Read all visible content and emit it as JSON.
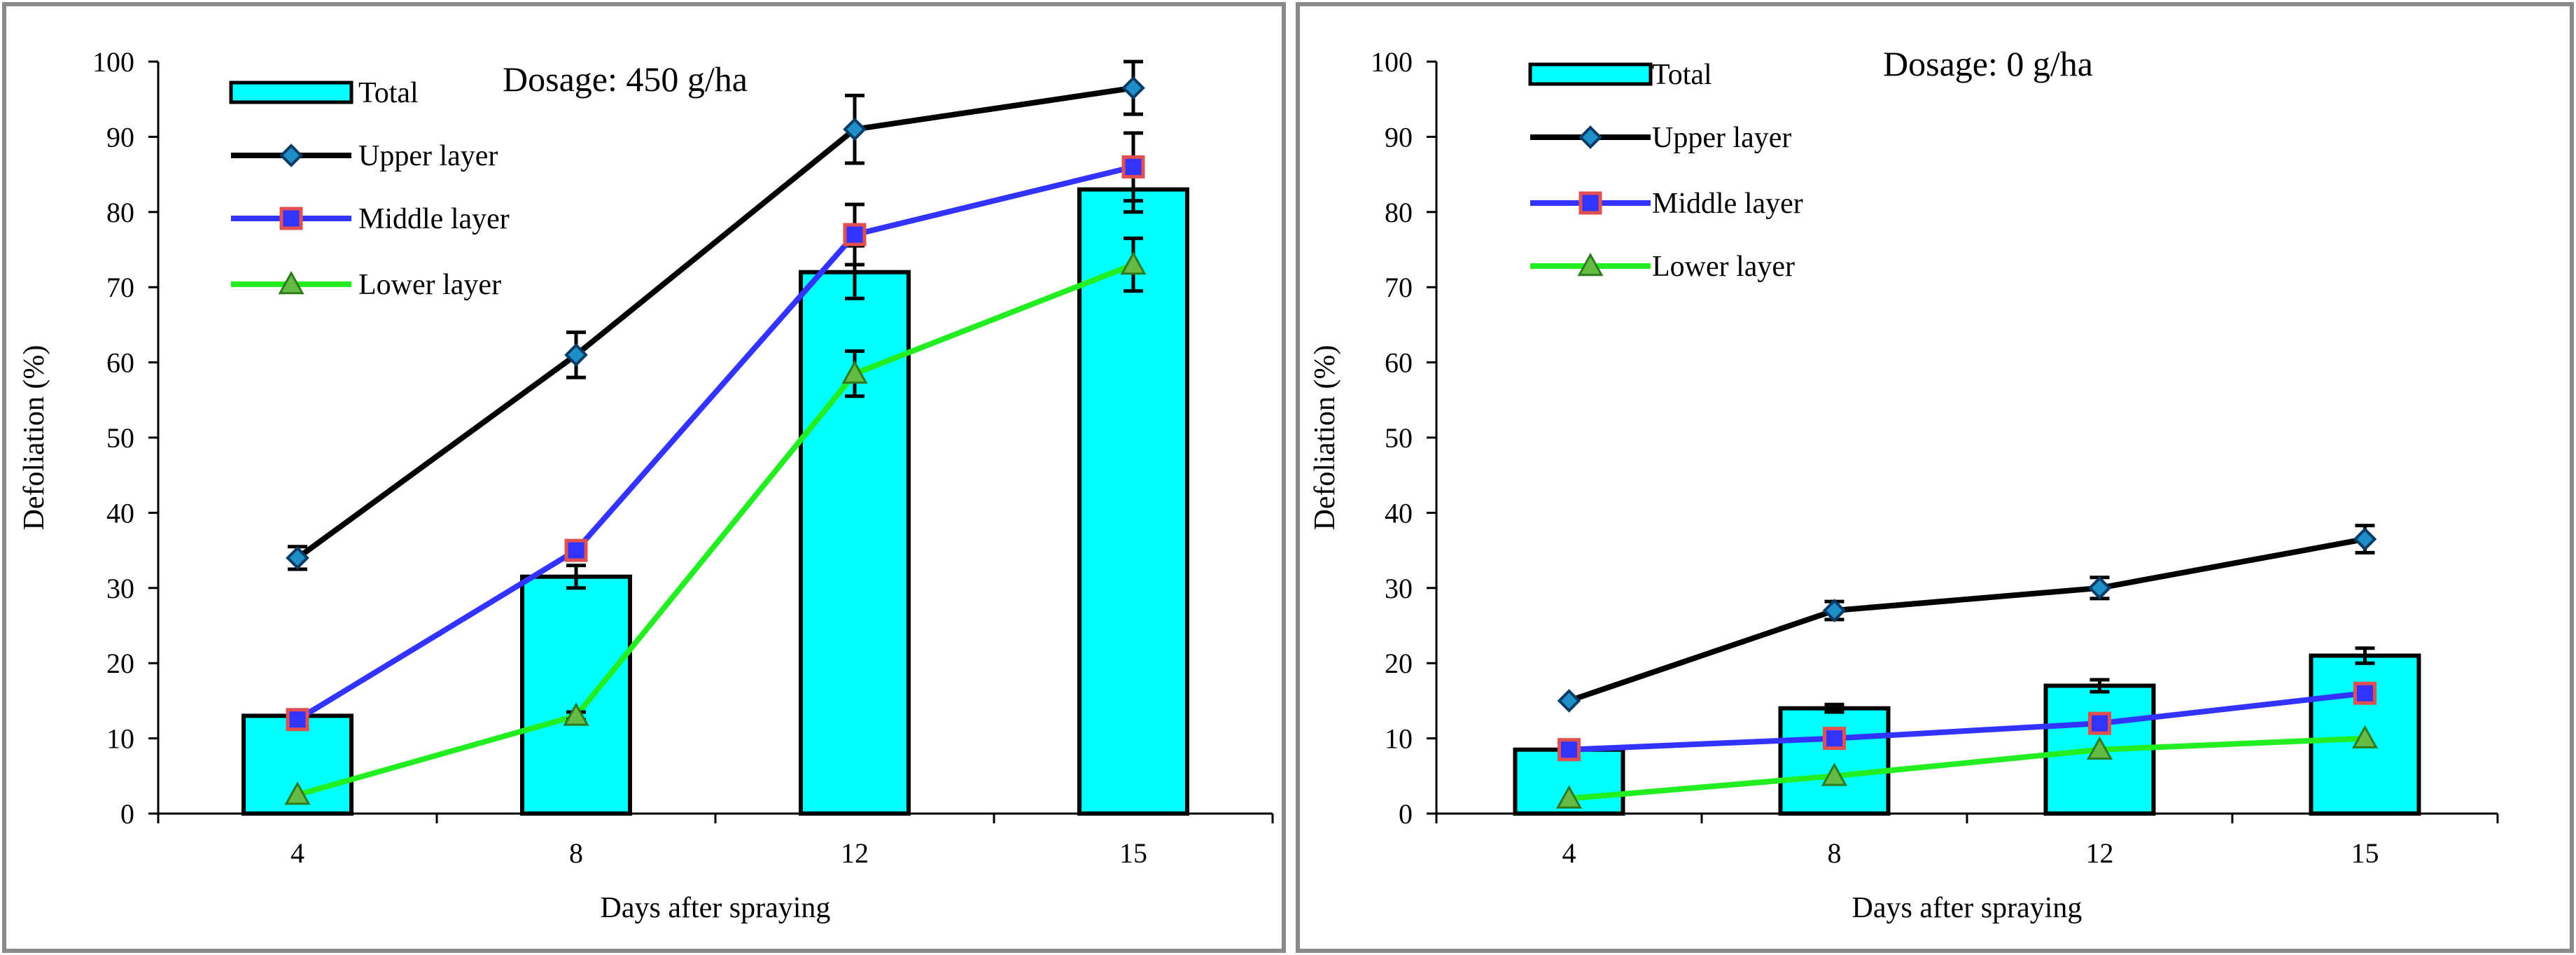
{
  "colors": {
    "total": "#00FFFF",
    "upper": "#000000",
    "upper_marker": "#1E8FC8",
    "middle": "#3333FF",
    "middle_marker_edge": "#E05050",
    "lower": "#22EE22",
    "lower_marker": "#66BB44",
    "frame": "#8A8A8A"
  },
  "chart_data": [
    {
      "type": "bar",
      "title": "Dosage: 450 g/ha",
      "xlabel": "Days after spraying",
      "ylabel": "Defoliation (%)",
      "ylim": [
        0,
        100
      ],
      "yticks": [
        0,
        10,
        20,
        30,
        40,
        50,
        60,
        70,
        80,
        90,
        100
      ],
      "categories": [
        "4",
        "8",
        "12",
        "15"
      ],
      "legend": [
        "Total",
        "Upper layer",
        "Middle layer",
        "Lower layer"
      ],
      "series": [
        {
          "name": "Total",
          "type": "bar",
          "values": [
            13,
            31.5,
            72,
            83
          ],
          "errors": [
            0,
            1.5,
            3.5,
            3
          ]
        },
        {
          "name": "Upper layer",
          "type": "line",
          "marker": "diamond",
          "values": [
            34,
            61,
            91,
            96.5
          ],
          "errors": [
            1.5,
            3,
            4.5,
            3.5
          ]
        },
        {
          "name": "Middle layer",
          "type": "line",
          "marker": "square",
          "values": [
            12.5,
            35,
            77,
            86
          ],
          "errors": [
            0,
            0,
            4,
            4.5
          ]
        },
        {
          "name": "Lower layer",
          "type": "line",
          "marker": "triangle",
          "values": [
            2.5,
            13,
            58.5,
            73
          ],
          "errors": [
            0,
            0.5,
            3,
            3.5
          ]
        }
      ]
    },
    {
      "type": "bar",
      "title": "Dosage: 0 g/ha",
      "xlabel": "Days after spraying",
      "ylabel": "Defoliation (%)",
      "ylim": [
        0,
        100
      ],
      "yticks": [
        0,
        10,
        20,
        30,
        40,
        50,
        60,
        70,
        80,
        90,
        100
      ],
      "categories": [
        "4",
        "8",
        "12",
        "15"
      ],
      "legend": [
        "Total",
        "Upper layer",
        "Middle layer",
        "Lower layer"
      ],
      "series": [
        {
          "name": "Total",
          "type": "bar",
          "values": [
            8.5,
            14,
            17,
            21
          ],
          "errors": [
            0,
            0.5,
            0.8,
            1
          ]
        },
        {
          "name": "Upper layer",
          "type": "line",
          "marker": "diamond",
          "values": [
            15,
            27,
            30,
            36.5
          ],
          "errors": [
            0,
            1.2,
            1.4,
            1.8
          ]
        },
        {
          "name": "Middle layer",
          "type": "line",
          "marker": "square",
          "values": [
            8.5,
            10,
            12,
            16
          ],
          "errors": [
            0,
            0,
            0,
            0
          ]
        },
        {
          "name": "Lower layer",
          "type": "line",
          "marker": "triangle",
          "values": [
            2,
            5,
            8.5,
            10
          ],
          "errors": [
            0,
            0,
            0,
            0
          ]
        }
      ]
    }
  ]
}
